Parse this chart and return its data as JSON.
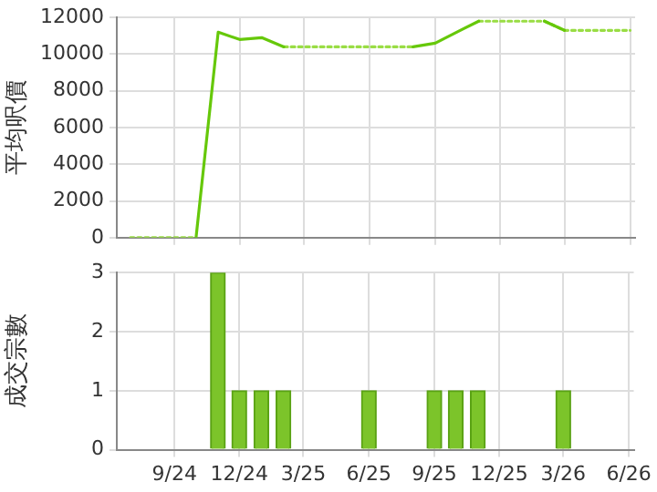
{
  "chart_data": [
    {
      "type": "line",
      "ylabel": "平均呎價",
      "xlim": [
        "2024-06-12",
        "2026-06-08"
      ],
      "ylim": [
        0,
        12000
      ],
      "yticks": [
        0,
        2000,
        4000,
        6000,
        8000,
        10000,
        12000
      ],
      "xticks": [
        {
          "value": "2024-09",
          "label": null
        },
        {
          "value": "2024-12",
          "label": null
        },
        {
          "value": "2025-03",
          "label": null
        },
        {
          "value": "2025-06",
          "label": null
        },
        {
          "value": "2025-09",
          "label": null
        },
        {
          "value": "2025-12",
          "label": null
        },
        {
          "value": "2026-03",
          "label": null
        },
        {
          "value": "2026-06",
          "label": null
        }
      ],
      "tick_labels": "y",
      "grid": true,
      "legend": false,
      "marker": "none",
      "series": [
        {
          "color": "#66c80a",
          "line_style": "solid",
          "x": [
            "2024-10",
            "2024-11",
            "2024-12",
            "2025-01",
            "2025-02",
            "2025-05",
            "2025-08",
            "2025-09",
            "2025-10",
            "2025-11",
            "2025-12",
            "2026-02",
            "2026-03"
          ],
          "values": [
            0,
            11200,
            10800,
            10900,
            10400,
            null,
            10400,
            10600,
            11200,
            11800,
            null,
            11800,
            11300
          ]
        },
        {
          "color": "#99dd44",
          "line_style": "dotted",
          "x": [
            "2024-07",
            "2024-10",
            "2024-12",
            "2025-02",
            "2025-08",
            "2025-10",
            "2025-11",
            "2026-02",
            "2026-03",
            "2026-06"
          ],
          "values": [
            0,
            0,
            null,
            10400,
            10400,
            null,
            11800,
            11800,
            11300,
            11300
          ]
        }
      ]
    },
    {
      "type": "bar",
      "ylabel": "成交宗數",
      "xlim": [
        "2024-06-12",
        "2026-06-08"
      ],
      "ylim": [
        0,
        3
      ],
      "yticks": [
        0,
        1,
        2,
        3
      ],
      "xticks": [
        {
          "value": "2024-09",
          "label": "9/24"
        },
        {
          "value": "2024-12",
          "label": "12/24"
        },
        {
          "value": "2025-03",
          "label": "3/25"
        },
        {
          "value": "2025-06",
          "label": "6/25"
        },
        {
          "value": "2025-09",
          "label": "9/25"
        },
        {
          "value": "2025-12",
          "label": "12/25"
        },
        {
          "value": "2026-03",
          "label": "3/26"
        },
        {
          "value": "2026-06",
          "label": "6/26"
        }
      ],
      "grid": true,
      "legend": false,
      "x": [
        "2024-11",
        "2024-12",
        "2025-01",
        "2025-02",
        "2025-06",
        "2025-09",
        "2025-10",
        "2025-11",
        "2026-03"
      ],
      "values": [
        3,
        1,
        1,
        1,
        1,
        1,
        1,
        1,
        1
      ],
      "color": "#7cc42a"
    }
  ]
}
